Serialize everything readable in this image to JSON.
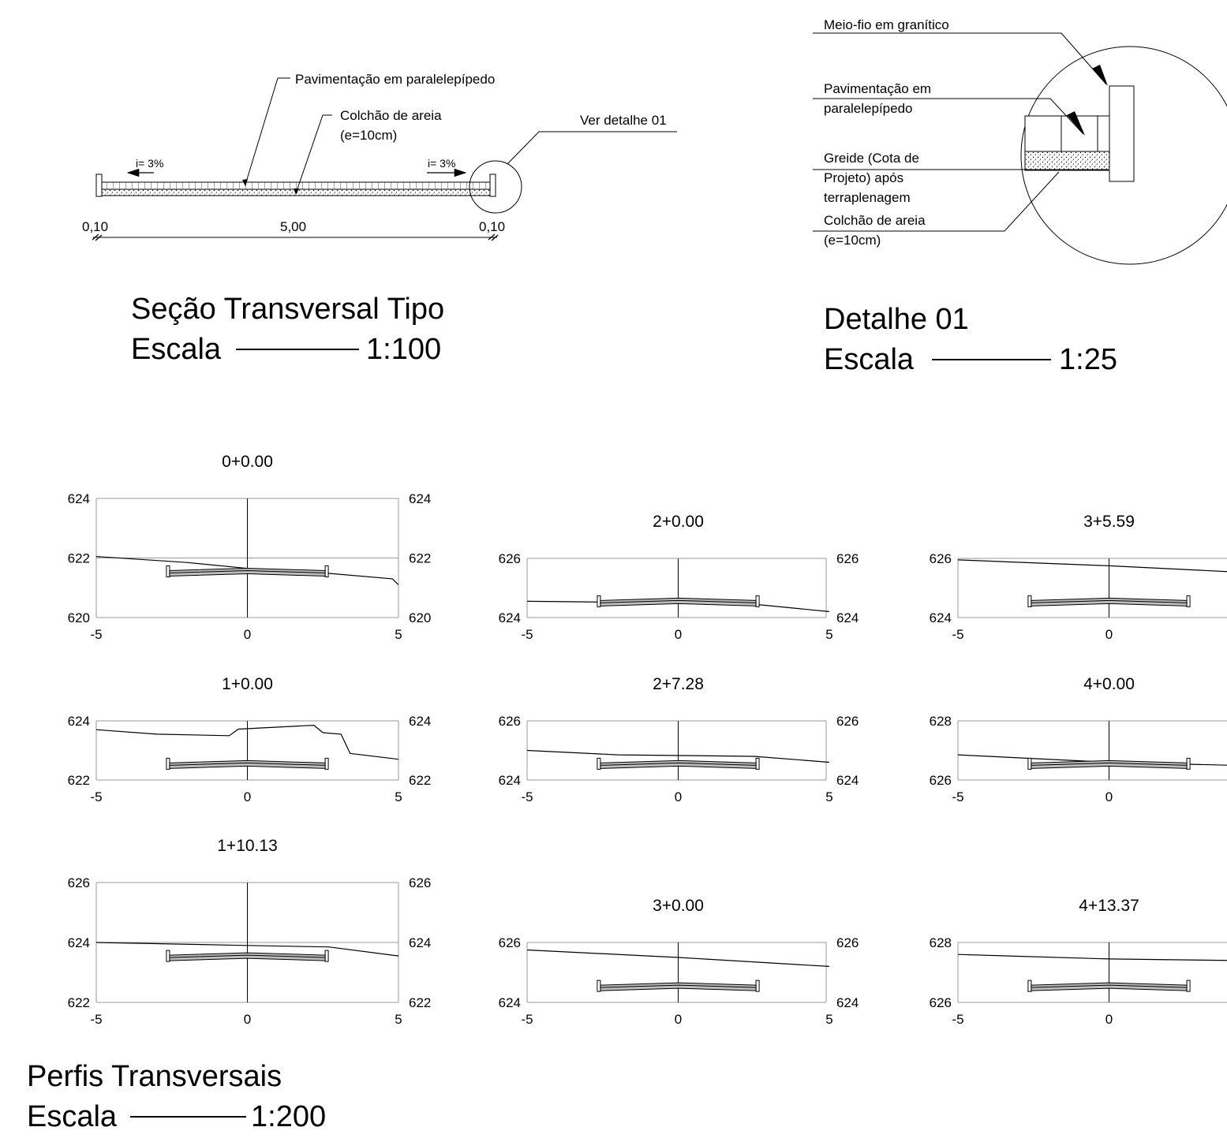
{
  "section": {
    "labels": {
      "paving": "Pavimentação em paralelepípedo",
      "sand_line1": "Colchão de areia",
      "sand_line2": "(e=10cm)",
      "detail_ref": "Ver detalhe 01"
    },
    "slope_left": "i= 3%",
    "slope_right": "i= 3%",
    "dims": [
      "0,10",
      "5,00",
      "0,10"
    ],
    "title": "Seção Transversal Tipo",
    "scale_word": "Escala",
    "scale_value": "1:100"
  },
  "detail": {
    "curb": "Meio-fio em granítico",
    "paving_line1": "Pavimentação em",
    "paving_line2": "paralelepípedo",
    "grade_line1": "Greide (Cota de",
    "grade_line2": "Projeto) após",
    "grade_line3": "terraplenagem",
    "sand_line1": "Colchão de areia",
    "sand_line2": "(e=10cm)",
    "title": "Detalhe 01",
    "scale_word": "Escala",
    "scale_value": "1:25"
  },
  "profiles_title": "Perfis Transversais",
  "profiles_scale_word": "Escala",
  "profiles_scale_value": "1:200",
  "chart_data": [
    {
      "type": "line",
      "title": "0+0.00",
      "xlim": [
        -5,
        5
      ],
      "ylim": [
        620,
        624
      ],
      "xticks": [
        "-5",
        "0",
        "5"
      ],
      "yticks": [
        "620",
        "622",
        "624"
      ],
      "terrain": [
        [
          -5,
          622.05
        ],
        [
          -2,
          621.85
        ],
        [
          0,
          621.65
        ],
        [
          2.5,
          621.5
        ],
        [
          4.8,
          621.3
        ],
        [
          5,
          621.1
        ]
      ],
      "road_elev": 621.55
    },
    {
      "type": "line",
      "title": "1+0.00",
      "xlim": [
        -5,
        5
      ],
      "ylim": [
        622,
        624
      ],
      "xticks": [
        "-5",
        "0",
        "5"
      ],
      "yticks": [
        "622",
        "624"
      ],
      "terrain": [
        [
          -5,
          623.7
        ],
        [
          -3,
          623.55
        ],
        [
          -0.6,
          623.5
        ],
        [
          -0.3,
          623.72
        ],
        [
          2.2,
          623.85
        ],
        [
          2.5,
          623.6
        ],
        [
          3.1,
          623.55
        ],
        [
          3.4,
          622.9
        ],
        [
          5,
          622.7
        ]
      ],
      "road_elev": 622.55
    },
    {
      "type": "line",
      "title": "1+10.13",
      "xlim": [
        -5,
        5
      ],
      "ylim": [
        622,
        626
      ],
      "xticks": [
        "-5",
        "0",
        "5"
      ],
      "yticks": [
        "622",
        "624",
        "626"
      ],
      "terrain": [
        [
          -5,
          624.0
        ],
        [
          0,
          623.9
        ],
        [
          2.7,
          623.85
        ],
        [
          5,
          623.55
        ]
      ],
      "road_elev": 623.55
    },
    {
      "type": "line",
      "title": "2+0.00",
      "xlim": [
        -5,
        5
      ],
      "ylim": [
        624,
        626
      ],
      "xticks": [
        "-5",
        "0",
        "5"
      ],
      "yticks": [
        "624",
        "626"
      ],
      "terrain": [
        [
          -5,
          624.55
        ],
        [
          0,
          624.5
        ],
        [
          2.5,
          624.45
        ],
        [
          5,
          624.2
        ]
      ],
      "road_elev": 624.55
    },
    {
      "type": "line",
      "title": "2+7.28",
      "xlim": [
        -5,
        5
      ],
      "ylim": [
        624,
        626
      ],
      "xticks": [
        "-5",
        "0",
        "5"
      ],
      "yticks": [
        "624",
        "626"
      ],
      "terrain": [
        [
          -5,
          625.0
        ],
        [
          -2,
          624.85
        ],
        [
          2.5,
          624.8
        ],
        [
          5,
          624.6
        ]
      ],
      "road_elev": 624.55
    },
    {
      "type": "line",
      "title": "3+0.00",
      "xlim": [
        -5,
        5
      ],
      "ylim": [
        624,
        626
      ],
      "xticks": [
        "-5",
        "0",
        "5"
      ],
      "yticks": [
        "624",
        "626"
      ],
      "terrain": [
        [
          -5,
          625.75
        ],
        [
          0,
          625.5
        ],
        [
          5,
          625.2
        ]
      ],
      "road_elev": 624.55
    },
    {
      "type": "line",
      "title": "3+5.59",
      "xlim": [
        -5,
        5
      ],
      "ylim": [
        624,
        626
      ],
      "xticks": [
        "-5",
        "0"
      ],
      "yticks": [
        "624",
        "626"
      ],
      "terrain": [
        [
          -5,
          625.95
        ],
        [
          0,
          625.75
        ],
        [
          4,
          625.55
        ]
      ],
      "road_elev": 624.55
    },
    {
      "type": "line",
      "title": "4+0.00",
      "xlim": [
        -5,
        5
      ],
      "ylim": [
        626,
        628
      ],
      "xticks": [
        "-5",
        "0"
      ],
      "yticks": [
        "626",
        "628"
      ],
      "terrain": [
        [
          -5,
          626.85
        ],
        [
          0,
          626.6
        ],
        [
          4,
          626.5
        ]
      ],
      "road_elev": 626.55
    },
    {
      "type": "line",
      "title": "4+13.37",
      "xlim": [
        -5,
        5
      ],
      "ylim": [
        626,
        628
      ],
      "xticks": [
        "-5",
        "0"
      ],
      "yticks": [
        "626",
        "628"
      ],
      "terrain": [
        [
          -5,
          627.6
        ],
        [
          0,
          627.45
        ],
        [
          4,
          627.4
        ]
      ],
      "road_elev": 626.55
    }
  ]
}
